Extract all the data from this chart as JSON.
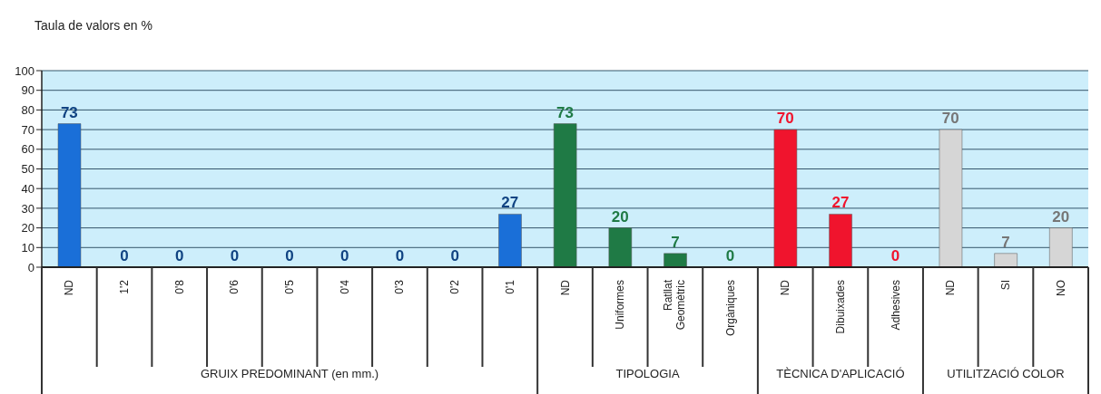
{
  "chart_data": {
    "type": "bar",
    "title": "Taula de valors en %",
    "categories": [
      "ND",
      "1'2",
      "0'8",
      "0'6",
      "0'5",
      "0'4",
      "0'3",
      "0'2",
      "0'1",
      "ND",
      "Uniformes",
      "Ratllat Geomètric",
      "Orgàniques",
      "ND",
      "Dibuixades",
      "Adhesives",
      "ND",
      "SI",
      "NO"
    ],
    "values": [
      73,
      0,
      0,
      0,
      0,
      0,
      0,
      0,
      27,
      73,
      20,
      7,
      0,
      70,
      27,
      0,
      70,
      7,
      20
    ],
    "colors": [
      "#1a6fd8",
      "#1a6fd8",
      "#1a6fd8",
      "#1a6fd8",
      "#1a6fd8",
      "#1a6fd8",
      "#1a6fd8",
      "#1a6fd8",
      "#1a6fd8",
      "#1f7a45",
      "#1f7a45",
      "#1f7a45",
      "#1f7a45",
      "#f0142d",
      "#f0142d",
      "#f0142d",
      "#d6d6d6",
      "#d6d6d6",
      "#d6d6d6"
    ],
    "annotations": [
      "GRUIX PREDOMINANT (en mm.)",
      "TIPOLOGIA",
      "TÈCNICA D'APLICACIÓ",
      "UTILITZACIÓ COLOR"
    ],
    "ylim": [
      0,
      100
    ],
    "yticks": [
      0,
      10,
      20,
      30,
      40,
      50,
      60,
      70,
      80,
      90,
      100
    ],
    "grid": "y",
    "data_labels": true
  }
}
